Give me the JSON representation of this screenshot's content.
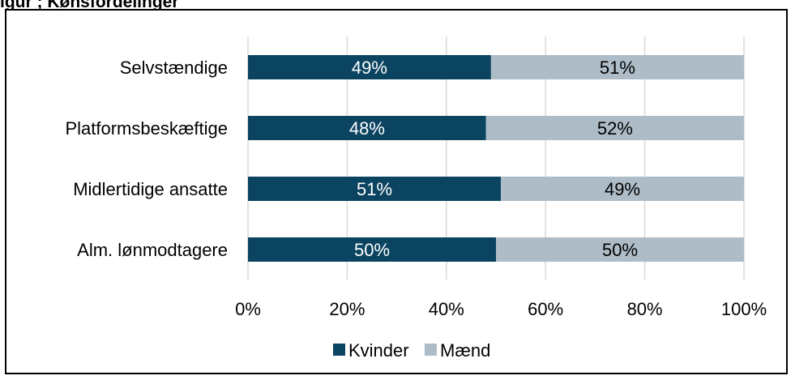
{
  "header": {
    "title_fragment": "igur ; Kønsfordelinger"
  },
  "chart_data": {
    "type": "bar",
    "orientation": "horizontal",
    "stacked": true,
    "categories": [
      "Selvstændige",
      "Platformsbeskæftige",
      "Midlertidige ansatte",
      "Alm. lønmodtagere"
    ],
    "series": [
      {
        "name": "Kvinder",
        "values": [
          49,
          48,
          51,
          50
        ],
        "labels": [
          "49%",
          "48%",
          "51%",
          "50%"
        ],
        "color": "#0b4461",
        "label_color": "#ffffff"
      },
      {
        "name": "Mænd",
        "values": [
          51,
          52,
          49,
          50
        ],
        "labels": [
          "51%",
          "52%",
          "49%",
          "50%"
        ],
        "color": "#adbcc7",
        "label_color": "#000000"
      }
    ],
    "xlim": [
      0,
      100
    ],
    "x_ticks": [
      "0%",
      "20%",
      "40%",
      "60%",
      "80%",
      "100%"
    ],
    "grid": true,
    "legend_position": "bottom"
  }
}
